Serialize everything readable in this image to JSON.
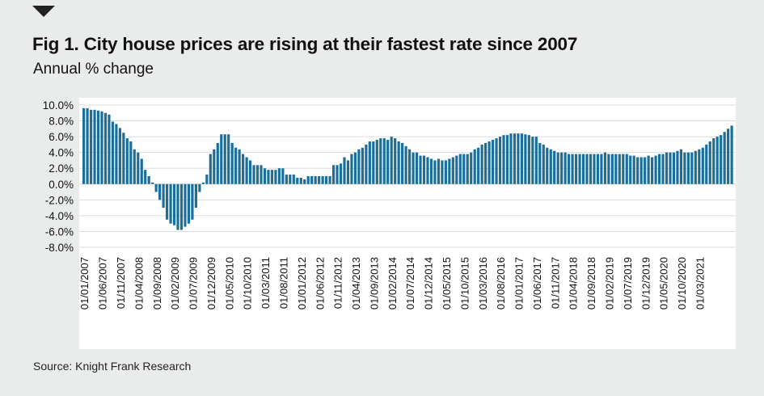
{
  "title": "Fig 1. City house prices are rising at their fastest rate since 2007",
  "subtitle": "Annual % change",
  "source": "Source: Knight Frank Research",
  "colors": {
    "bar": "#1a6f9a",
    "background": "#e9eceb",
    "plot_background": "#ffffff",
    "grid": "#dcdcdc"
  },
  "chart_data": {
    "type": "bar",
    "title": "Fig 1. City house prices are rising at their fastest rate since 2007",
    "ylabel": "Annual % change",
    "xlabel": "",
    "ylim": [
      -8,
      10
    ],
    "y_ticks": [
      "10.0%",
      "8.0%",
      "6.0%",
      "4.0%",
      "2.0%",
      "0.0%",
      "-2.0%",
      "-4.0%",
      "-6.0%",
      "-8.0%"
    ],
    "x_tick_labels": [
      "01/01/2007",
      "01/06/2007",
      "01/11/2007",
      "01/04/2008",
      "01/09/2008",
      "01/02/2009",
      "01/07/2009",
      "01/12/2009",
      "01/05/2010",
      "01/10/2010",
      "01/03/2011",
      "01/08/2011",
      "01/01/2012",
      "01/06/2012",
      "01/11/2012",
      "01/04/2013",
      "01/09/2013",
      "01/02/2014",
      "01/07/2014",
      "01/12/2014",
      "01/05/2015",
      "01/10/2015",
      "01/03/2016",
      "01/08/2016",
      "01/01/2017",
      "01/06/2017",
      "01/11/2017",
      "01/04/2018",
      "01/09/2018",
      "01/02/2019",
      "01/07/2019",
      "01/12/2019",
      "01/05/2020",
      "01/10/2020",
      "01/03/2021"
    ],
    "tick_every_n_months": 5,
    "start": "01/01/2007",
    "series": [
      {
        "name": "City house prices, annual % change",
        "values": [
          9.6,
          9.6,
          9.4,
          9.4,
          9.3,
          9.2,
          9.0,
          8.8,
          7.9,
          7.6,
          7.1,
          6.5,
          5.8,
          5.4,
          4.4,
          4.0,
          3.2,
          1.8,
          1.0,
          0.2,
          -1.0,
          -2.0,
          -3.0,
          -4.5,
          -5.0,
          -5.2,
          -5.8,
          -5.8,
          -5.4,
          -5.0,
          -4.5,
          -3.0,
          -1.0,
          0.2,
          1.2,
          3.8,
          4.4,
          5.2,
          6.3,
          6.3,
          6.3,
          5.2,
          4.6,
          4.4,
          3.8,
          3.4,
          3.0,
          2.4,
          2.4,
          2.4,
          2.0,
          1.8,
          1.8,
          1.8,
          2.0,
          2.0,
          1.2,
          1.2,
          1.2,
          0.8,
          0.8,
          0.6,
          1.0,
          1.0,
          1.0,
          1.0,
          1.0,
          1.0,
          1.0,
          2.4,
          2.4,
          2.6,
          3.4,
          3.0,
          3.8,
          4.0,
          4.4,
          4.6,
          5.0,
          5.4,
          5.4,
          5.6,
          5.8,
          5.8,
          5.6,
          6.0,
          5.8,
          5.4,
          5.2,
          4.8,
          4.4,
          4.0,
          4.0,
          3.6,
          3.6,
          3.4,
          3.2,
          3.0,
          3.2,
          3.0,
          3.0,
          3.2,
          3.4,
          3.6,
          3.8,
          3.8,
          3.8,
          4.0,
          4.4,
          4.6,
          5.0,
          5.2,
          5.4,
          5.6,
          5.8,
          6.0,
          6.2,
          6.2,
          6.4,
          6.4,
          6.4,
          6.4,
          6.3,
          6.2,
          6.0,
          6.0,
          5.2,
          5.0,
          4.6,
          4.4,
          4.2,
          4.0,
          4.0,
          4.0,
          3.8,
          3.8,
          3.8,
          3.8,
          3.8,
          3.8,
          3.8,
          3.8,
          3.8,
          3.8,
          4.0,
          3.8,
          3.8,
          3.8,
          3.8,
          3.8,
          3.8,
          3.6,
          3.6,
          3.4,
          3.4,
          3.4,
          3.6,
          3.4,
          3.6,
          3.8,
          3.8,
          4.0,
          4.0,
          4.0,
          4.2,
          4.4,
          4.0,
          4.0,
          4.0,
          4.2,
          4.4,
          4.6,
          5.0,
          5.4,
          5.8,
          6.0,
          6.2,
          6.6,
          7.0,
          7.4
        ]
      }
    ]
  }
}
